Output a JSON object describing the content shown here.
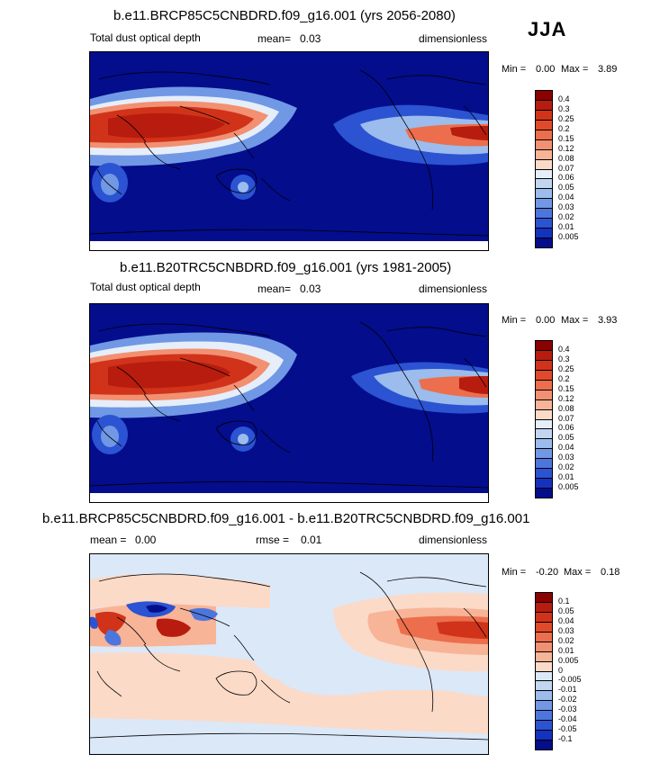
{
  "season": "JJA",
  "panels": [
    {
      "title": "b.e11.BRCP85C5CNBDRD.f09_g16.001 (yrs 2056-2080)",
      "left_label": "Total dust optical depth",
      "mean_label": "mean=",
      "mean_value": "0.03",
      "units": "dimensionless",
      "min_label": "Min =",
      "min_value": "0.00",
      "max_label": "Max =",
      "max_value": "3.89",
      "colorbar_labels": [
        "0.4",
        "0.3",
        "0.25",
        "0.2",
        "0.15",
        "0.12",
        "0.08",
        "0.07",
        "0.06",
        "0.05",
        "0.04",
        "0.03",
        "0.02",
        "0.01",
        "0.005"
      ],
      "colorbar_colors": [
        "#8b0000",
        "#b71c0e",
        "#d0331a",
        "#e04a2a",
        "#ec6e4c",
        "#f29072",
        "#f7b497",
        "#fbdac8",
        "#e6eef9",
        "#c2d6f2",
        "#9bbcec",
        "#7098e4",
        "#4d76dd",
        "#2b53d2",
        "#1532bf",
        "#040d8c"
      ]
    },
    {
      "title": "b.e11.B20TRC5CNBDRD.f09_g16.001 (yrs 1981-2005)",
      "left_label": "Total dust optical depth",
      "mean_label": "mean=",
      "mean_value": "0.03",
      "units": "dimensionless",
      "min_label": "Min =",
      "min_value": "0.00",
      "max_label": "Max =",
      "max_value": "3.93",
      "colorbar_labels": [
        "0.4",
        "0.3",
        "0.25",
        "0.2",
        "0.15",
        "0.12",
        "0.08",
        "0.07",
        "0.06",
        "0.05",
        "0.04",
        "0.03",
        "0.02",
        "0.01",
        "0.005"
      ],
      "colorbar_colors": [
        "#8b0000",
        "#b71c0e",
        "#d0331a",
        "#e04a2a",
        "#ec6e4c",
        "#f29072",
        "#f7b497",
        "#fbdac8",
        "#e6eef9",
        "#c2d6f2",
        "#9bbcec",
        "#7098e4",
        "#4d76dd",
        "#2b53d2",
        "#1532bf",
        "#040d8c"
      ]
    },
    {
      "title": "b.e11.BRCP85C5CNBDRD.f09_g16.001 - b.e11.B20TRC5CNBDRD.f09_g16.001",
      "left_label": "mean =",
      "left_value": "0.00",
      "mid_label": "rmse =",
      "mid_value": "0.01",
      "units": "dimensionless",
      "min_label": "Min =",
      "min_value": "-0.20",
      "max_label": "Max =",
      "max_value": "0.18",
      "colorbar_labels": [
        "0.1",
        "0.05",
        "0.04",
        "0.03",
        "0.02",
        "0.01",
        "0.005",
        "0",
        "-0.005",
        "-0.01",
        "-0.02",
        "-0.03",
        "-0.04",
        "-0.05",
        "-0.1"
      ],
      "colorbar_colors": [
        "#8b0000",
        "#b71c0e",
        "#d0331a",
        "#e04a2a",
        "#ec6e4c",
        "#f29072",
        "#f7b497",
        "#fbdac8",
        "#dbe8f8",
        "#c2d6f2",
        "#9bbcec",
        "#7098e4",
        "#4d76dd",
        "#2b53d2",
        "#1532bf",
        "#040d8c"
      ]
    }
  ]
}
